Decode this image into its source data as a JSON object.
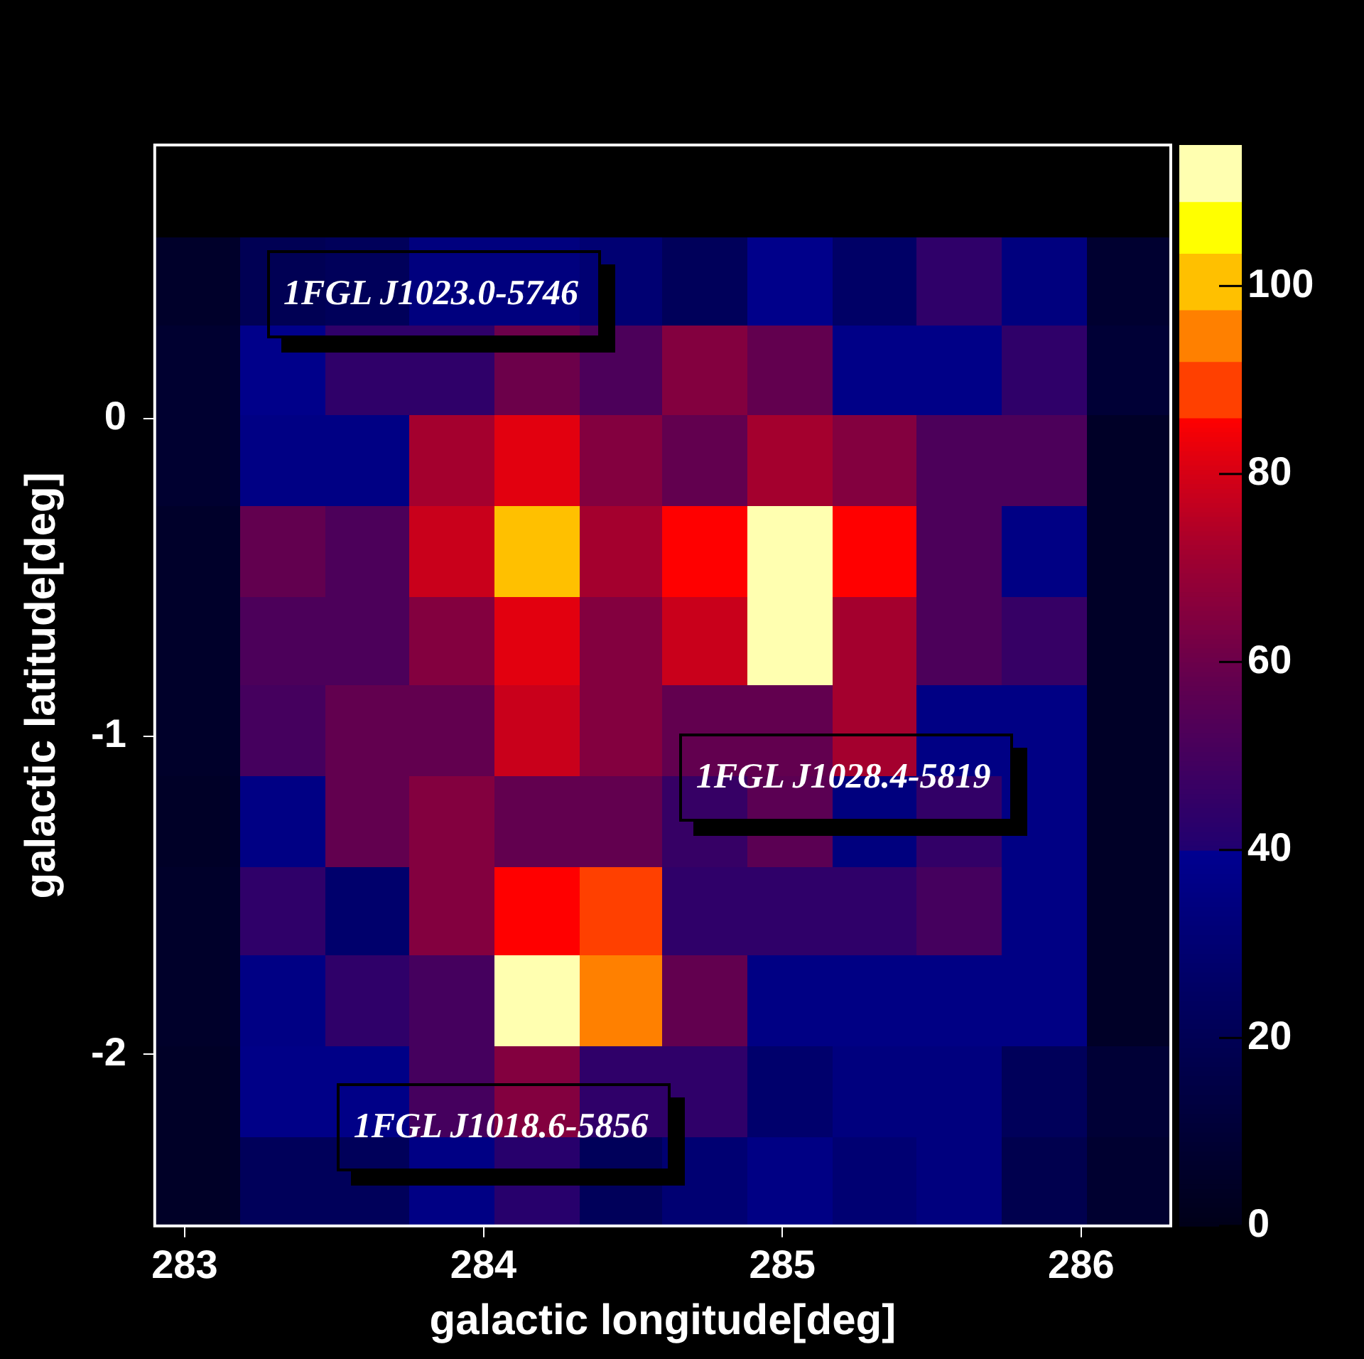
{
  "chart_data": {
    "type": "heatmap",
    "xlabel": "galactic longitude[deg]",
    "ylabel": "galactic latitude[deg]",
    "xlim": [
      282.9,
      286.3
    ],
    "xticks": [
      283,
      284,
      285,
      286
    ],
    "ylim": [
      -2.54,
      0.86
    ],
    "yticks": [
      -2,
      -1,
      0
    ],
    "clim": [
      0,
      115
    ],
    "cticks": [
      0,
      20,
      40,
      60,
      80,
      100
    ],
    "x": [
      283.04,
      283.33,
      283.61,
      283.89,
      284.18,
      284.46,
      284.74,
      285.03,
      285.31,
      285.59,
      285.88,
      286.16
    ],
    "y": [
      0.43,
      0.15,
      -0.13,
      -0.42,
      -0.7,
      -0.98,
      -1.27,
      -1.55,
      -1.83,
      -2.12,
      -2.4
    ],
    "cells": [
      [
        6,
        20,
        22,
        34,
        34,
        30,
        22,
        38,
        26,
        44,
        34,
        8
      ],
      [
        8,
        38,
        44,
        44,
        60,
        52,
        65,
        58,
        37,
        37,
        44,
        10
      ],
      [
        8,
        36,
        36,
        72,
        82,
        65,
        58,
        72,
        65,
        52,
        52,
        5
      ],
      [
        6,
        58,
        52,
        78,
        100,
        72,
        86,
        112,
        86,
        52,
        36,
        5
      ],
      [
        6,
        52,
        52,
        65,
        82,
        65,
        78,
        112,
        72,
        52,
        46,
        5
      ],
      [
        6,
        50,
        58,
        58,
        78,
        65,
        58,
        58,
        72,
        36,
        36,
        5
      ],
      [
        5,
        36,
        58,
        65,
        58,
        58,
        46,
        56,
        34,
        45,
        36,
        5
      ],
      [
        6,
        44,
        28,
        65,
        86,
        89,
        44,
        44,
        44,
        50,
        36,
        5
      ],
      [
        6,
        36,
        44,
        50,
        112,
        95,
        58,
        36,
        36,
        36,
        36,
        5
      ],
      [
        5,
        37,
        37,
        50,
        65,
        44,
        44,
        28,
        34,
        34,
        22,
        10
      ],
      [
        5,
        22,
        22,
        36,
        42,
        22,
        30,
        36,
        30,
        34,
        18,
        8
      ]
    ],
    "annotations": [
      "1FGL J1023.0-5746",
      "1FGL J1028.4-5819",
      "1FGL J1018.6-5856"
    ]
  }
}
